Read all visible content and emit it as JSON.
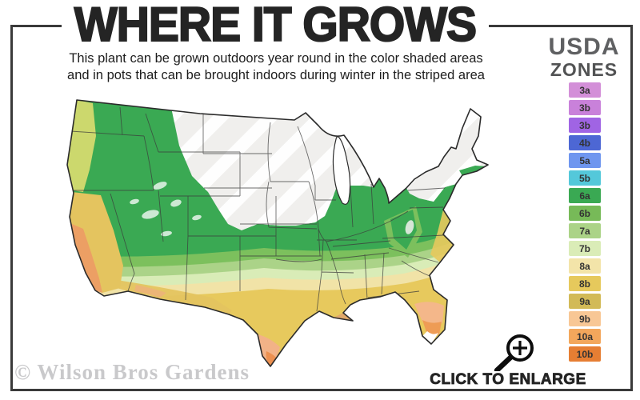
{
  "header": {
    "title": "WHERE IT GROWS",
    "subtitle_line1": "This plant can be grown outdoors year round in the color shaded areas",
    "subtitle_line2": "and in pots that can be brought indoors during winter in the striped area"
  },
  "legend": {
    "title_line1": "USDA",
    "title_line2": "ZONES",
    "zones": [
      {
        "label": "3a",
        "color": "#d38fd8"
      },
      {
        "label": "3b",
        "color": "#c981da"
      },
      {
        "label": "3b",
        "color": "#a064e4"
      },
      {
        "label": "4b",
        "color": "#4d67d4"
      },
      {
        "label": "5a",
        "color": "#6f96ef"
      },
      {
        "label": "5b",
        "color": "#54c8da"
      },
      {
        "label": "6a",
        "color": "#3aa953"
      },
      {
        "label": "6b",
        "color": "#77ba58"
      },
      {
        "label": "7a",
        "color": "#abd387"
      },
      {
        "label": "7b",
        "color": "#daecb7"
      },
      {
        "label": "8a",
        "color": "#f3e4a9"
      },
      {
        "label": "8b",
        "color": "#e6c95c"
      },
      {
        "label": "9a",
        "color": "#d2ba57"
      },
      {
        "label": "9b",
        "color": "#f8c795"
      },
      {
        "label": "10a",
        "color": "#f3a75c"
      },
      {
        "label": "10b",
        "color": "#e67e33"
      }
    ]
  },
  "map": {
    "hardy_colors": [
      "#3aa953",
      "#7cc05d",
      "#abd388",
      "#d9ecb7",
      "#f1e3a7",
      "#e7c95d",
      "#dbaf63",
      "#f2b287",
      "#ee9c55"
    ],
    "not_hardy_color": "#f0efed",
    "stripe_color": "#ffffff"
  },
  "footer": {
    "watermark": "© Wilson Bros Gardens",
    "click_to_enlarge": "CLICK TO ENLARGE",
    "magnifier_icon": "magnifier-plus-icon"
  }
}
